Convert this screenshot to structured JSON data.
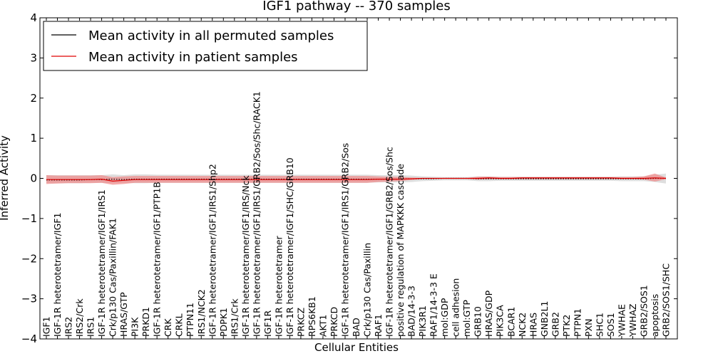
{
  "chart_data": {
    "type": "line",
    "title": "IGF1 pathway -- 370 samples",
    "xlabel": "Cellular Entities",
    "ylabel": "Inferred Activity",
    "ylim": [
      -4,
      4
    ],
    "yticks": [
      -4,
      -3,
      -2,
      -1,
      0,
      1,
      2,
      3,
      4
    ],
    "grid": false,
    "legend_position": "top-left",
    "categories": [
      "IGF1",
      "IGF-1R heterotetramer/IGF1",
      "IRS2",
      "IRS2/Crk",
      "IRS1",
      "IGF-1R heterotetramer/IGF1/IRS1",
      "Crk/p130 Cas/Paxillin/FAK1",
      "HRAS/GTP",
      "PI3K",
      "PRKD1",
      "IGF-1R heterotetramer/IGF1/PTP1B",
      "CRK",
      "CRKL",
      "PTPN11",
      "IRS1/NCK2",
      "IGF-1R heterotetramer/IGF1/IRS1/Shp2",
      "PDPK1",
      "IRS1/Crk",
      "IGF-1R heterotetramer/IGF1/IRS/Nck",
      "IGF-1R heterotetramer/IGF1/IRS1/GRB2/Sos/Shc/RACK1",
      "IGF1R",
      "IGF-1R heterotetramer",
      "IGF-1R heterotetramer/IGF1/SHC/GRB10",
      "PRKCZ",
      "RPS6KB1",
      "AKT1",
      "PRKCD",
      "IGF-1R heterotetramer/IGF1/IRS1/GRB2/Sos",
      "BAD",
      "Crk/p130 Cas/Paxillin",
      "RAF1",
      "IGF-1R heterotetramer/IGF1/GRB2/Sos/Shc",
      "positive regulation of MAPKKK cascade",
      "BAD/14-3-3",
      "PIK3R1",
      "RAF1/14-3-3 E",
      "mol:GDP",
      "cell adhesion",
      "mol:GTP",
      "GRB10",
      "HRAS/GDP",
      "PIK3CA",
      "BCAR1",
      "NCK2",
      "HRAS",
      "GNB2L1",
      "GRB2",
      "PTK2",
      "PTPN1",
      "PXN",
      "SHC1",
      "SOS1",
      "YWHAE",
      "YWHAZ",
      "GRB2/SOS1",
      "apoptosis",
      "GRB2/SOS1/SHC"
    ],
    "series": [
      {
        "name": "Mean activity in all permuted samples",
        "color": "#000000",
        "values": [
          -0.04,
          -0.04,
          -0.04,
          -0.04,
          -0.03,
          -0.03,
          -0.02,
          -0.03,
          -0.02,
          -0.02,
          -0.02,
          -0.02,
          -0.02,
          -0.02,
          -0.02,
          -0.02,
          -0.02,
          -0.02,
          -0.02,
          -0.02,
          -0.02,
          -0.02,
          -0.02,
          -0.02,
          -0.02,
          -0.02,
          -0.02,
          -0.02,
          -0.02,
          -0.02,
          -0.02,
          -0.02,
          -0.02,
          -0.01,
          -0.01,
          -0.01,
          0.0,
          0.0,
          0.0,
          -0.01,
          -0.01,
          -0.01,
          -0.01,
          -0.01,
          -0.01,
          -0.01,
          -0.01,
          -0.01,
          -0.01,
          -0.01,
          -0.01,
          -0.01,
          -0.01,
          -0.01,
          -0.01,
          0.0,
          0.0
        ],
        "band_color": "#c8c8c8",
        "band_low": [
          -0.12,
          -0.12,
          -0.12,
          -0.12,
          -0.11,
          -0.11,
          -0.12,
          -0.11,
          -0.12,
          -0.12,
          -0.11,
          -0.11,
          -0.11,
          -0.11,
          -0.11,
          -0.11,
          -0.11,
          -0.11,
          -0.11,
          -0.11,
          -0.11,
          -0.11,
          -0.11,
          -0.11,
          -0.11,
          -0.11,
          -0.11,
          -0.11,
          -0.11,
          -0.11,
          -0.1,
          -0.1,
          -0.1,
          -0.09,
          -0.07,
          -0.06,
          -0.05,
          -0.05,
          -0.05,
          -0.07,
          -0.07,
          -0.06,
          -0.06,
          -0.06,
          -0.06,
          -0.06,
          -0.06,
          -0.06,
          -0.06,
          -0.06,
          -0.06,
          -0.06,
          -0.07,
          -0.07,
          -0.07,
          -0.09,
          -0.13
        ],
        "band_high": [
          0.08,
          0.08,
          0.08,
          0.08,
          0.08,
          0.08,
          0.1,
          0.08,
          0.1,
          0.1,
          0.09,
          0.09,
          0.09,
          0.09,
          0.09,
          0.09,
          0.09,
          0.09,
          0.09,
          0.09,
          0.09,
          0.09,
          0.09,
          0.09,
          0.09,
          0.09,
          0.09,
          0.09,
          0.09,
          0.09,
          0.08,
          0.08,
          0.08,
          0.07,
          0.05,
          0.04,
          0.03,
          0.03,
          0.03,
          0.05,
          0.05,
          0.04,
          0.04,
          0.04,
          0.04,
          0.04,
          0.04,
          0.04,
          0.04,
          0.04,
          0.04,
          0.04,
          0.05,
          0.05,
          0.05,
          0.09,
          0.12
        ]
      },
      {
        "name": "Mean activity in patient samples",
        "color": "#e00000",
        "values": [
          -0.03,
          -0.03,
          -0.03,
          -0.03,
          -0.03,
          -0.02,
          -0.07,
          -0.05,
          -0.03,
          -0.03,
          -0.03,
          -0.03,
          -0.03,
          -0.03,
          -0.03,
          -0.03,
          -0.03,
          -0.03,
          -0.03,
          -0.03,
          -0.03,
          -0.03,
          -0.03,
          -0.03,
          -0.03,
          -0.03,
          -0.03,
          -0.03,
          -0.03,
          -0.03,
          -0.02,
          -0.02,
          -0.02,
          -0.01,
          0.0,
          0.0,
          0.0,
          0.0,
          0.0,
          0.0,
          0.01,
          0.0,
          0.0,
          0.01,
          0.01,
          0.01,
          0.01,
          0.01,
          0.01,
          0.01,
          0.01,
          0.01,
          0.0,
          0.0,
          0.0,
          0.01,
          0.0
        ],
        "band_color": "#f08080",
        "band_low": [
          -0.14,
          -0.13,
          -0.12,
          -0.12,
          -0.12,
          -0.11,
          -0.16,
          -0.14,
          -0.11,
          -0.11,
          -0.11,
          -0.11,
          -0.11,
          -0.11,
          -0.11,
          -0.11,
          -0.11,
          -0.11,
          -0.11,
          -0.11,
          -0.11,
          -0.11,
          -0.11,
          -0.11,
          -0.11,
          -0.11,
          -0.11,
          -0.11,
          -0.11,
          -0.11,
          -0.09,
          -0.08,
          -0.07,
          -0.04,
          -0.01,
          0.0,
          0.0,
          0.0,
          -0.01,
          -0.03,
          -0.02,
          -0.02,
          -0.02,
          -0.02,
          -0.02,
          -0.02,
          -0.02,
          -0.02,
          -0.02,
          -0.02,
          -0.02,
          -0.02,
          -0.02,
          -0.02,
          -0.03,
          -0.08,
          -0.02
        ],
        "band_high": [
          0.08,
          0.07,
          0.07,
          0.07,
          0.07,
          0.08,
          0.03,
          0.05,
          0.06,
          0.06,
          0.06,
          0.06,
          0.06,
          0.06,
          0.06,
          0.06,
          0.06,
          0.06,
          0.06,
          0.06,
          0.06,
          0.06,
          0.06,
          0.06,
          0.06,
          0.06,
          0.06,
          0.06,
          0.06,
          0.06,
          0.05,
          0.04,
          0.04,
          0.02,
          0.01,
          0.0,
          0.0,
          0.0,
          0.01,
          0.04,
          0.04,
          0.03,
          0.03,
          0.03,
          0.03,
          0.03,
          0.03,
          0.03,
          0.03,
          0.03,
          0.03,
          0.03,
          0.03,
          0.03,
          0.05,
          0.12,
          0.02
        ]
      }
    ]
  }
}
